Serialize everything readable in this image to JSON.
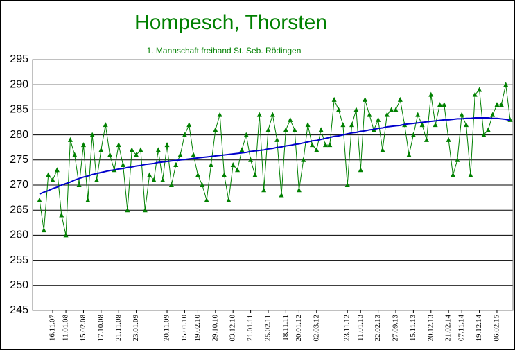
{
  "chart_data": {
    "type": "line",
    "title": "Hompesch, Thorsten",
    "subtitle": "1. Mannschaft freihand St. Seb. Rödingen",
    "categories": [
      null,
      null,
      null,
      "16.11.07",
      null,
      null,
      "11.01.08",
      null,
      null,
      null,
      "15.02.08",
      null,
      null,
      null,
      "17.10.08",
      null,
      null,
      null,
      "21.11.08",
      null,
      null,
      null,
      "23.01.09",
      null,
      null,
      null,
      null,
      null,
      null,
      "20.11.09",
      null,
      null,
      null,
      "15.01.10",
      null,
      null,
      "19.02.10",
      null,
      null,
      null,
      "29.10.10",
      null,
      null,
      null,
      "03.12.10",
      null,
      null,
      null,
      "21.01.11",
      null,
      null,
      null,
      "25.02.11",
      null,
      null,
      null,
      "18.11.11",
      null,
      null,
      "20.01.12",
      null,
      null,
      null,
      "02.03.12",
      null,
      null,
      null,
      null,
      null,
      null,
      "23.11.12",
      null,
      null,
      "11.01.13",
      null,
      null,
      null,
      "22.02.13",
      null,
      null,
      null,
      "27.09.13",
      null,
      null,
      null,
      "15.11.13",
      null,
      null,
      null,
      "20.12.13",
      null,
      null,
      null,
      "21.02.14",
      null,
      null,
      "07.11.14",
      null,
      null,
      null,
      "19.12.14",
      null,
      null,
      null,
      "06.02.15",
      null,
      null,
      null
    ],
    "series": [
      {
        "color": "#008000",
        "marker": "triangle",
        "values": [
          267,
          261,
          272,
          271,
          273,
          264,
          260,
          279,
          276,
          270,
          278,
          267,
          280,
          271,
          277,
          282,
          276,
          273,
          278,
          274,
          265,
          277,
          276,
          277,
          265,
          272,
          271,
          277,
          271,
          278,
          270,
          274,
          276,
          280,
          282,
          276,
          272,
          270,
          267,
          274,
          281,
          284,
          272,
          267,
          274,
          273,
          277,
          280,
          275,
          272,
          284,
          269,
          281,
          284,
          279,
          268,
          281,
          283,
          281,
          269,
          275,
          282,
          278,
          277,
          281,
          278,
          278,
          287,
          285,
          282,
          270,
          282,
          285,
          273,
          287,
          284,
          281,
          283,
          277,
          284,
          285,
          285,
          287,
          282,
          276,
          280,
          284,
          282,
          279,
          288,
          282,
          286,
          286,
          279,
          272,
          275,
          284,
          282,
          272,
          288,
          289,
          280,
          281,
          284,
          286,
          286,
          290,
          283
        ]
      },
      {
        "color": "#0000cc",
        "values": [
          268.2,
          268.6,
          268.9,
          269.3,
          269.6,
          270.0,
          270.3,
          270.6,
          271.0,
          271.3,
          271.6,
          271.8,
          272.1,
          272.3,
          272.5,
          272.7,
          272.9,
          273.0,
          273.2,
          273.3,
          273.5,
          273.6,
          273.8,
          273.9,
          274.1,
          274.2,
          274.3,
          274.5,
          274.6,
          274.7,
          274.8,
          274.9,
          275.0,
          275.1,
          275.2,
          275.3,
          275.4,
          275.5,
          275.6,
          275.7,
          275.8,
          275.9,
          276.0,
          276.1,
          276.2,
          276.3,
          276.4,
          276.5,
          276.7,
          276.8,
          276.9,
          277.0,
          277.2,
          277.3,
          277.5,
          277.6,
          277.8,
          277.9,
          278.1,
          278.2,
          278.4,
          278.6,
          278.8,
          278.9,
          279.1,
          279.3,
          279.5,
          279.7,
          279.8,
          280.0,
          280.2,
          280.4,
          280.5,
          280.7,
          280.8,
          281.0,
          281.1,
          281.3,
          281.4,
          281.6,
          281.7,
          281.8,
          281.9,
          282.1,
          282.2,
          282.3,
          282.4,
          282.5,
          282.6,
          282.7,
          282.8,
          282.9,
          283.0,
          283.0,
          283.1,
          283.2,
          283.2,
          283.3,
          283.3,
          283.4,
          283.4,
          283.4,
          283.4,
          283.3,
          283.3,
          283.2,
          283.1,
          282.9
        ]
      }
    ],
    "ylim": [
      245,
      295
    ],
    "yticks": [
      245,
      250,
      255,
      260,
      265,
      270,
      275,
      280,
      285,
      290,
      295
    ],
    "grid": true
  }
}
